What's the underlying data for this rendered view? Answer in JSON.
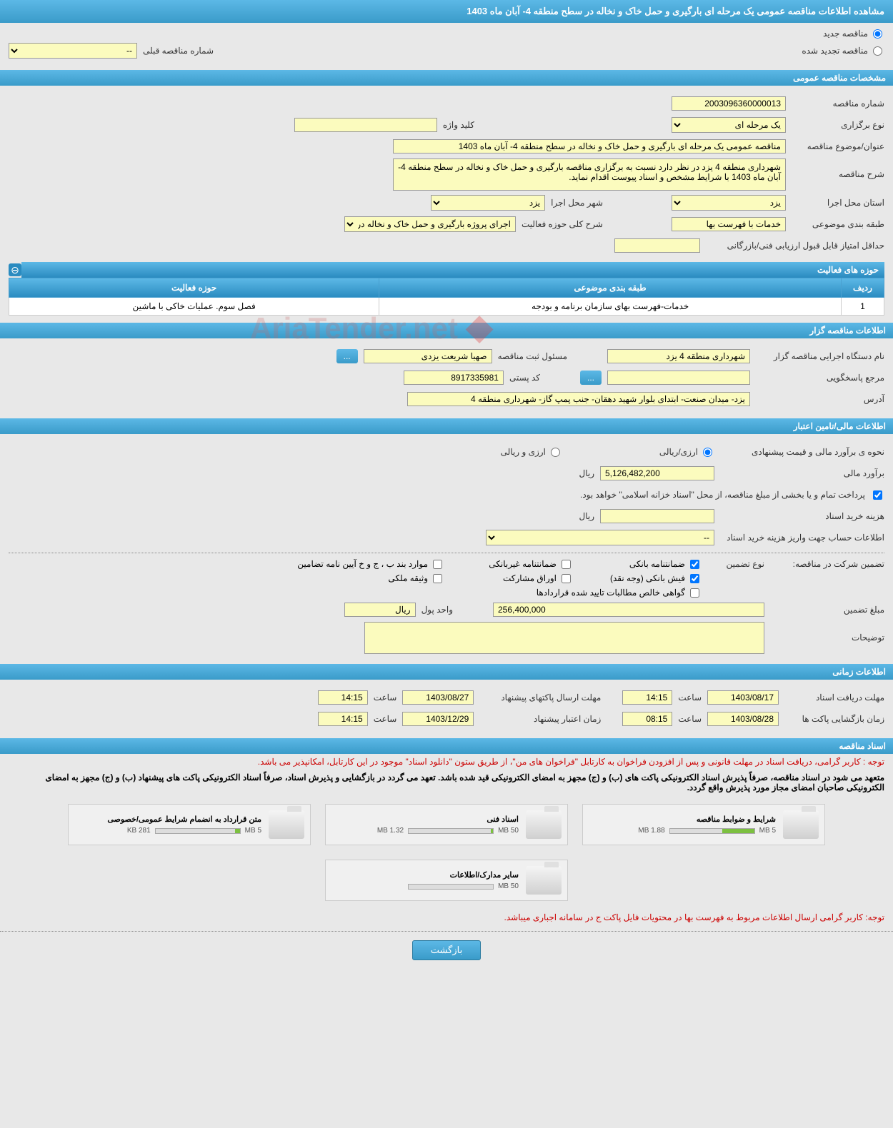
{
  "page_title": "مشاهده اطلاعات مناقصه عمومی یک مرحله ای بارگیری و حمل خاک و نخاله در سطح منطقه 4- آبان ماه 1403",
  "tender_type": {
    "new": "مناقصه جدید",
    "renewed": "مناقصه تجدید شده",
    "prev_number_label": "شماره مناقصه قبلی",
    "prev_number": "--"
  },
  "sections": {
    "general": "مشخصات مناقصه عمومی",
    "tenderer": "اطلاعات مناقصه گزار",
    "financial": "اطلاعات مالی/تامین اعتبار",
    "timing": "اطلاعات زمانی",
    "documents": "اسناد مناقصه"
  },
  "general": {
    "number_label": "شماره مناقصه",
    "number": "2003096360000013",
    "type_label": "نوع برگزاری",
    "type": "یک مرحله ای",
    "keyword_label": "کلید واژه",
    "keyword": "",
    "title_label": "عنوان/موضوع مناقصه",
    "title": "مناقصه عمومی یک مرحله ای بارگیری و حمل خاک و نخاله در سطح منطقه 4- آبان ماه 1403",
    "desc_label": "شرح مناقصه",
    "desc": "شهرداری منطقه 4 یزد در نظر دارد نسبت به برگزاری مناقصه بارگیری و حمل خاک و نخاله در سطح منطقه 4- آبان ماه 1403 با شرایط مشخص و اسناد پیوست اقدام نماید.",
    "province_label": "استان محل اجرا",
    "province": "یزد",
    "city_label": "شهر محل اجرا",
    "city": "یزد",
    "category_label": "طبقه بندی موضوعی",
    "category": "خدمات با فهرست بها",
    "activity_scope_label": "شرح کلی حوزه فعالیت",
    "activity_scope": "اجرای پروژه بارگیری و حمل خاک و نخاله در سطح",
    "min_score_label": "حداقل امتیاز قابل قبول ارزیابی فنی/بازرگانی",
    "min_score": ""
  },
  "activities": {
    "header": "حوزه های فعالیت",
    "columns": {
      "row": "ردیف",
      "category": "طبقه بندی موضوعی",
      "field": "حوزه فعالیت"
    },
    "rows": [
      {
        "row": "1",
        "category": "خدمات-فهرست بهای سازمان برنامه و بودجه",
        "field": "فصل سوم. عملیات خاکی با ماشین"
      }
    ]
  },
  "tenderer": {
    "org_label": "نام دستگاه اجرایی مناقصه گزار",
    "org": "شهرداری منطقه 4 یزد",
    "registrar_label": "مسئول ثبت مناقصه",
    "registrar": "صهبا شریعت یزدی",
    "more": "...",
    "responder_label": "مرجع پاسخگویی",
    "responder": "",
    "browse": "...",
    "postal_label": "کد پستی",
    "postal": "8917335981",
    "address_label": "آدرس",
    "address": "یزد- میدان صنعت- ابتدای بلوار شهید دهقان- جنب پمپ گاز- شهرداری منطقه 4"
  },
  "financial": {
    "estimate_label": "نحوه ی برآورد مالی و قیمت پیشنهادی",
    "currency_rial": "ارزی/ریالی",
    "currency_foreign": "ارزی و ریالی",
    "estimate_amount_label": "برآورد مالی",
    "estimate_amount": "5,126,482,200",
    "rial": "ریال",
    "treasury_note": "پرداخت تمام و یا بخشی از مبلغ مناقصه، از محل \"اسناد خزانه اسلامی\" خواهد بود.",
    "doc_fee_label": "هزینه خرید اسناد",
    "account_info_label": "اطلاعات حساب جهت واریز هزینه خرید اسناد",
    "account_info": "--",
    "guarantee_label": "تضمین شرکت در مناقصه:",
    "guarantee_type_label": "نوع تضمین",
    "guarantees": {
      "bank_guarantee": "ضمانتنامه بانکی",
      "nonbank_guarantee": "ضمانتنامه غیربانکی",
      "sections_bpjk": "موارد بند ب ، ج و خ آیین نامه تضامین",
      "bank_receipt": "فیش بانکی (وجه نقد)",
      "participation_papers": "اوراق مشارکت",
      "property_deed": "وثیقه ملکی",
      "net_receivables": "گواهی خالص مطالبات تایید شده قراردادها"
    },
    "guarantee_amount_label": "مبلغ تضمین",
    "guarantee_amount": "256,400,000",
    "currency_unit_label": "واحد پول",
    "currency_unit": "ریال",
    "notes_label": "توضیحات"
  },
  "timing": {
    "receive_deadline_label": "مهلت دریافت اسناد",
    "receive_deadline_date": "1403/08/17",
    "receive_deadline_time": "14:15",
    "send_deadline_label": "مهلت ارسال پاکتهای پیشنهاد",
    "send_deadline_date": "1403/08/27",
    "send_deadline_time": "14:15",
    "opening_label": "زمان بازگشایی پاکت ها",
    "opening_date": "1403/08/28",
    "opening_time": "08:15",
    "validity_label": "زمان اعتبار پیشنهاد",
    "validity_date": "1403/12/29",
    "validity_time": "14:15",
    "time_label": "ساعت"
  },
  "documents": {
    "note1": "توجه : کاربر گرامی، دریافت اسناد در مهلت قانونی و پس از افزودن فراخوان به کارتابل \"فراخوان های من\"، از طریق ستون \"دانلود اسناد\" موجود در این کارتابل، امکانپذیر می باشد.",
    "note2": "متعهد می شود در اسناد مناقصه، صرفاً پذیرش اسناد الکترونیکی پاکت های (ب) و (ج) مجهز به امضای الکترونیکی قید شده باشد. تعهد می گردد در بازگشایی و پذیرش اسناد، صرفاً اسناد الکترونیکی پاکت های پیشنهاد (ب) و (ج) مجهز به امضای الکترونیکی صاحبان امضای مجاز مورد پذیرش واقع گردد.",
    "files": [
      {
        "name": "شرایط و ضوابط مناقصه",
        "size": "1.88 MB",
        "limit": "5 MB",
        "pct": 38
      },
      {
        "name": "اسناد فنی",
        "size": "1.32 MB",
        "limit": "50 MB",
        "pct": 3
      },
      {
        "name": "متن قرارداد به انضمام شرایط عمومی/خصوصی",
        "size": "281 KB",
        "limit": "5 MB",
        "pct": 6
      },
      {
        "name": "سایر مدارک/اطلاعات",
        "size": "",
        "limit": "50 MB",
        "pct": 0
      }
    ],
    "note3": "توجه: کاربر گرامی ارسال اطلاعات مربوط به فهرست بها در محتویات فایل پاکت ج در سامانه اجباری میباشد."
  },
  "back_button": "بازگشت",
  "watermark": "AriaTender.net"
}
